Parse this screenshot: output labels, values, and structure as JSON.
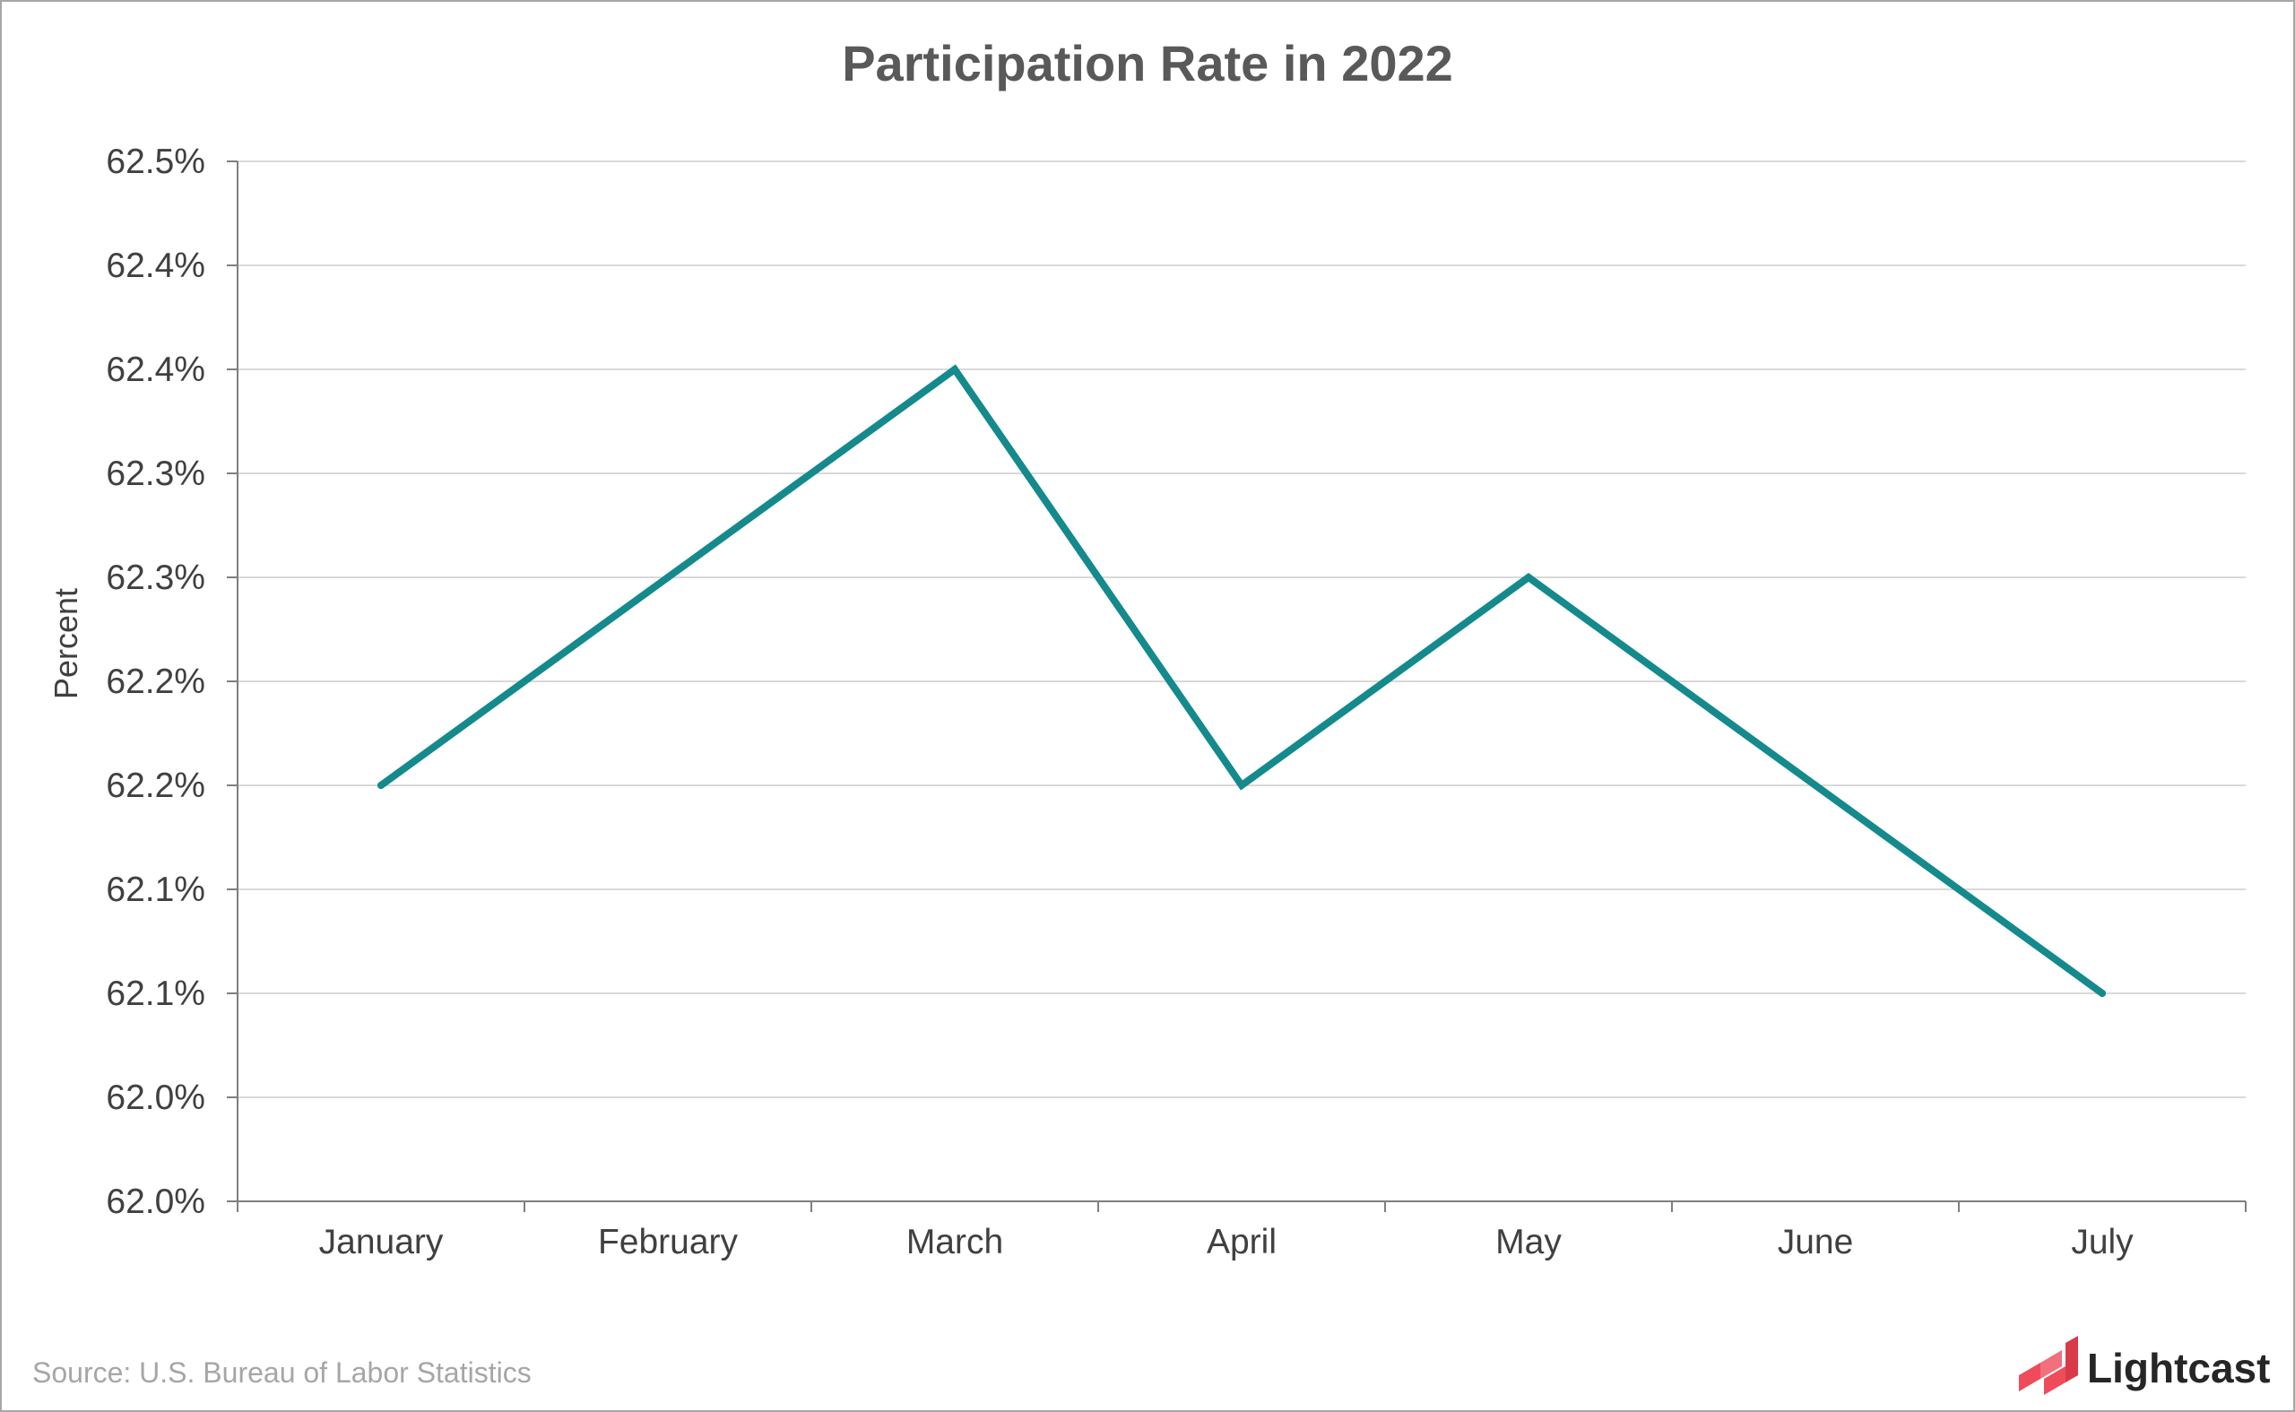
{
  "chart_data": {
    "type": "line",
    "title": "Participation Rate in 2022",
    "xlabel": "",
    "ylabel": "Percent",
    "categories": [
      "January",
      "February",
      "March",
      "April",
      "May",
      "June",
      "July"
    ],
    "series": [
      {
        "values": [
          62.2,
          62.3,
          62.4,
          62.2,
          62.3,
          62.2,
          62.1
        ],
        "color": "#148a8c"
      }
    ],
    "y_tick_values": [
      62.0,
      62.05,
      62.1,
      62.15,
      62.2,
      62.25,
      62.3,
      62.35,
      62.4,
      62.45,
      62.5
    ],
    "y_tick_labels": [
      "62.0%",
      "62.0%",
      "62.1%",
      "62.1%",
      "62.2%",
      "62.2%",
      "62.3%",
      "62.3%",
      "62.4%",
      "62.4%",
      "62.5%"
    ],
    "ylim": [
      62.0,
      62.5
    ],
    "grid": true,
    "legend": "none"
  },
  "footer": {
    "source": "Source:  U.S. Bureau of Labor Statistics",
    "brand_name": "Lightcast",
    "brand_icon": "lightcast-logo-icon",
    "brand_color": "#ef4b5b"
  }
}
